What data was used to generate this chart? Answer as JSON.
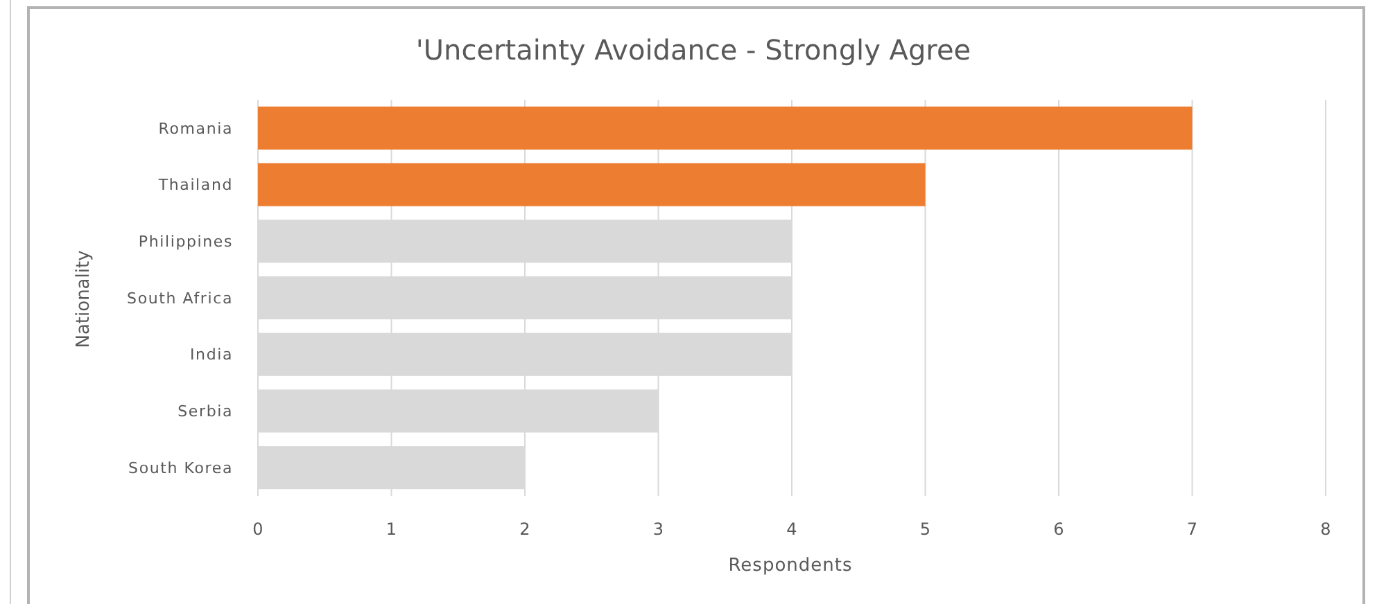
{
  "chart_data": {
    "type": "bar",
    "orientation": "horizontal",
    "title": "'Uncertainty Avoidance - Strongly Agree",
    "xlabel": "Respondents",
    "ylabel": "Nationality",
    "categories": [
      "Romania",
      "Thailand",
      "Philippines",
      "South Africa",
      "India",
      "Serbia",
      "South Korea"
    ],
    "values": [
      7,
      5,
      4,
      4,
      4,
      3,
      2
    ],
    "colors": [
      "#ed7d31",
      "#ed7d31",
      "#d9d9d9",
      "#d9d9d9",
      "#d9d9d9",
      "#d9d9d9",
      "#d9d9d9"
    ],
    "xlim": [
      0,
      8
    ],
    "xticks": [
      0,
      1,
      2,
      3,
      4,
      5,
      6,
      7,
      8
    ],
    "grid": "x"
  }
}
